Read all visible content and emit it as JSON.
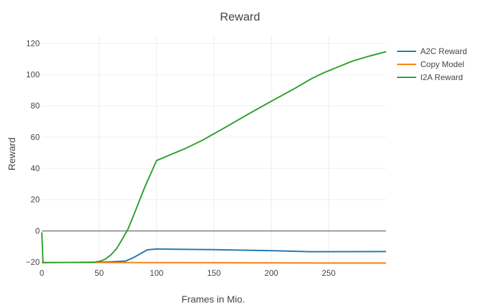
{
  "chart_data": {
    "type": "line",
    "title": "Reward",
    "xlabel": "Frames in Mio.",
    "ylabel": "Reward",
    "xlim": [
      0,
      300
    ],
    "ylim": [
      -20,
      125
    ],
    "x_ticks": [
      0,
      50,
      100,
      150,
      200,
      250
    ],
    "y_ticks": [
      -20,
      0,
      20,
      40,
      60,
      80,
      100,
      120
    ],
    "zero_line": true,
    "grid": true,
    "legend_position": "right",
    "series": [
      {
        "name": "A2C Reward",
        "color": "#1f77b4",
        "points": [
          [
            0,
            -20.3
          ],
          [
            40,
            -20.1
          ],
          [
            60,
            -19.8
          ],
          [
            73,
            -19.3
          ],
          [
            80,
            -17
          ],
          [
            92,
            -12.1
          ],
          [
            100,
            -11.6
          ],
          [
            150,
            -12
          ],
          [
            200,
            -12.7
          ],
          [
            235,
            -13.3
          ],
          [
            300,
            -13.2
          ]
        ]
      },
      {
        "name": "Copy Model",
        "color": "#ff7f0e",
        "points": [
          [
            0,
            -20.2
          ],
          [
            50,
            -20.2
          ],
          [
            100,
            -20.3
          ],
          [
            150,
            -20.4
          ],
          [
            200,
            -20.5
          ],
          [
            250,
            -20.6
          ],
          [
            300,
            -20.6
          ]
        ]
      },
      {
        "name": "I2A Reward",
        "color": "#2ca02c",
        "points": [
          [
            0,
            -1
          ],
          [
            1,
            -20.2
          ],
          [
            30,
            -20.2
          ],
          [
            45,
            -20.1
          ],
          [
            50,
            -19.5
          ],
          [
            55,
            -18.2
          ],
          [
            60,
            -15.5
          ],
          [
            65,
            -11.5
          ],
          [
            70,
            -5.5
          ],
          [
            75,
            1
          ],
          [
            80,
            10
          ],
          [
            90,
            28.5
          ],
          [
            100,
            45
          ],
          [
            108,
            47.5
          ],
          [
            125,
            52.7
          ],
          [
            140,
            58
          ],
          [
            160,
            66.3
          ],
          [
            180,
            74.8
          ],
          [
            200,
            83
          ],
          [
            220,
            91
          ],
          [
            235,
            97.4
          ],
          [
            245,
            101
          ],
          [
            260,
            105.5
          ],
          [
            270,
            108.5
          ],
          [
            285,
            111.8
          ],
          [
            300,
            114.7
          ]
        ]
      }
    ]
  }
}
